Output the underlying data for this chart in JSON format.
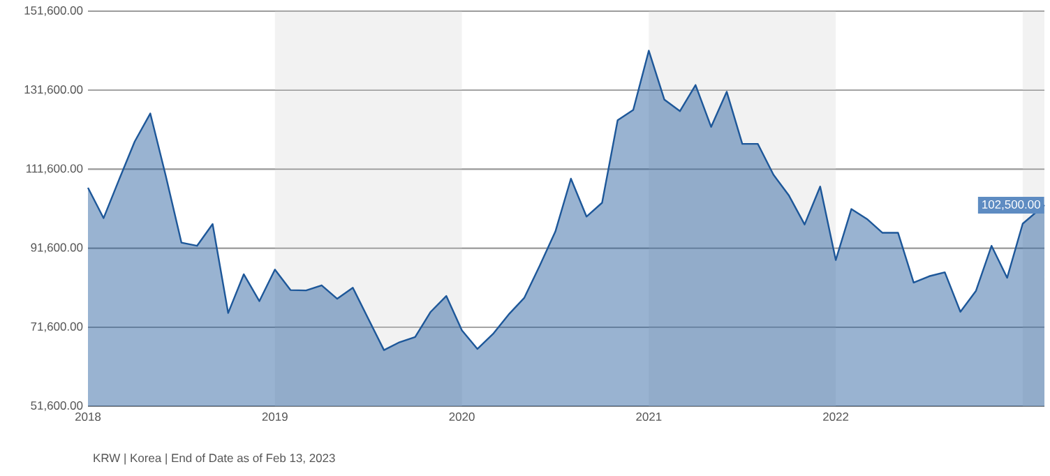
{
  "chart_data": {
    "type": "area",
    "x": [
      "2018-01",
      "2018-02",
      "2018-03",
      "2018-04",
      "2018-05",
      "2018-06",
      "2018-07",
      "2018-08",
      "2018-09",
      "2018-10",
      "2018-11",
      "2018-12",
      "2019-01",
      "2019-02",
      "2019-03",
      "2019-04",
      "2019-05",
      "2019-06",
      "2019-07",
      "2019-08",
      "2019-09",
      "2019-10",
      "2019-11",
      "2019-12",
      "2020-01",
      "2020-02",
      "2020-03",
      "2020-04",
      "2020-05",
      "2020-06",
      "2020-07",
      "2020-08",
      "2020-09",
      "2020-10",
      "2020-11",
      "2020-12",
      "2021-01",
      "2021-02",
      "2021-03",
      "2021-04",
      "2021-05",
      "2021-06",
      "2021-07",
      "2021-08",
      "2021-09",
      "2021-10",
      "2021-11",
      "2021-12",
      "2022-01",
      "2022-02",
      "2022-03",
      "2022-04",
      "2022-05",
      "2022-06",
      "2022-07",
      "2022-08",
      "2022-09",
      "2022-10",
      "2022-11",
      "2022-12",
      "2023-01",
      "2023-02-13"
    ],
    "series": [
      {
        "color": "#1d5799",
        "values": [
          106900,
          99200,
          109000,
          118600,
          125700,
          109800,
          93000,
          92200,
          97700,
          75200,
          85000,
          78200,
          86200,
          81000,
          80900,
          82200,
          78800,
          81600,
          73700,
          65800,
          67800,
          69100,
          75500,
          79500,
          70800,
          66100,
          69900,
          74800,
          79000,
          87200,
          95800,
          109200,
          99600,
          103100,
          124000,
          126600,
          141600,
          129200,
          126300,
          132900,
          122300,
          131200,
          118000,
          118000,
          110200,
          104900,
          97600,
          107200,
          88600,
          101500,
          99000,
          95500,
          95500,
          82900,
          84500,
          85500,
          75500,
          80800,
          92200,
          84100,
          97800,
          102500
        ],
        "value_labels": [
          null,
          null,
          null,
          null,
          null,
          null,
          null,
          null,
          null,
          null,
          null,
          null,
          null,
          null,
          null,
          null,
          null,
          null,
          null,
          null,
          null,
          null,
          null,
          null,
          null,
          null,
          null,
          null,
          null,
          null,
          null,
          null,
          null,
          null,
          null,
          null,
          null,
          null,
          null,
          null,
          null,
          null,
          null,
          null,
          null,
          null,
          null,
          null,
          null,
          null,
          null,
          null,
          null,
          null,
          null,
          null,
          null,
          null,
          null,
          null,
          null,
          "102,500.00"
        ]
      }
    ],
    "xlim": [
      "2018-01",
      "2023-02-13"
    ],
    "xticks": [
      {
        "value": "2018-01",
        "label": "2018"
      },
      {
        "value": "2019-01",
        "label": "2019"
      },
      {
        "value": "2020-01",
        "label": "2020"
      },
      {
        "value": "2021-01",
        "label": "2021"
      },
      {
        "value": "2022-01",
        "label": "2022"
      }
    ],
    "ylim": [
      51600,
      151600
    ],
    "yticks": [
      {
        "value": 51600,
        "label": "51,600.00"
      },
      {
        "value": 71600,
        "label": "71,600.00"
      },
      {
        "value": 91600,
        "label": "91,600.00"
      },
      {
        "value": 111600,
        "label": "111,600.00"
      },
      {
        "value": 131600,
        "label": "131,600.00"
      },
      {
        "value": 151600,
        "label": "151,600.00"
      }
    ],
    "bands": [
      {
        "axis": "x",
        "from": "2019-01",
        "to": "2020-01",
        "color": "#f2f2f2"
      },
      {
        "axis": "x",
        "from": "2021-01",
        "to": "2022-01",
        "color": "#f2f2f2"
      },
      {
        "axis": "x",
        "from": "2023-01",
        "to": "2023-02-13",
        "color": "#f2f2f2"
      }
    ],
    "grid": "y",
    "annotations": [
      "KRW | Korea | End of Date as of Feb 13, 2023"
    ]
  }
}
